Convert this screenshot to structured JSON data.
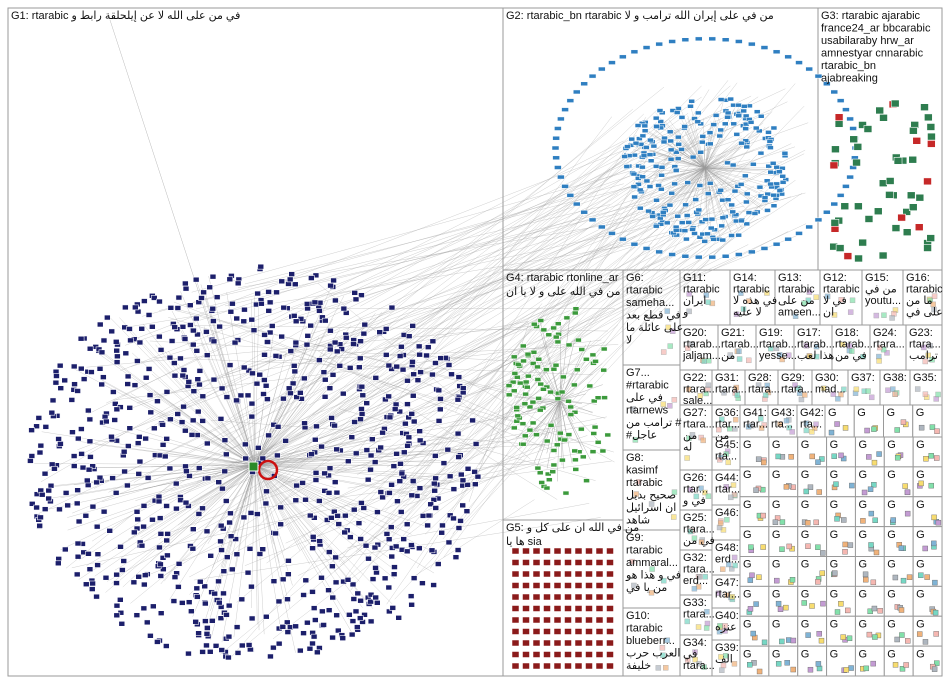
{
  "groups": [
    {
      "lines": [
        "G1: rtarabic في من على الله لا عن إيلحلقة رابط و"
      ]
    },
    {
      "lines": [
        "G2: rtarabic_bn rtarabic من في على إيران الله ترامب و لا"
      ]
    },
    {
      "lines": [
        "G3: rtarabic ajarabic",
        "france24_ar bbcarabic",
        "usabilaraby hrw_ar",
        "amnestyar cnnarabic",
        "rtarabic_bn",
        "ajabreaking"
      ]
    },
    {
      "lines": [
        "G4: rtarabic rtonline_ar",
        "من في الله على و لا يا ان"
      ]
    },
    {
      "lines": [
        "G5: من في الله ان على كل و",
        "ها يا sia"
      ]
    },
    {
      "lines": [
        "G6:",
        "rtarabic",
        "sameha...",
        "في قطع بعد",
        "على عائلة ما",
        "لا"
      ]
    },
    {
      "lines": [
        "G7...",
        "#rtarabic",
        "في على",
        "rtarnews",
        "ترامب من #",
        "#عاجل"
      ]
    },
    {
      "lines": [
        "G8:",
        "kasimf",
        "rtarabic",
        "صحيح بديل",
        "ان اسرائيل",
        "شاهد"
      ]
    },
    {
      "lines": [
        "G9:",
        "rtarabic",
        "ammaral...",
        "في و هذا هو",
        "من يا في"
      ]
    },
    {
      "lines": [
        "G10:",
        "rtarabic",
        "blueberr...",
        "العرب حرب",
        "خليفة"
      ]
    },
    {
      "lines": [
        "G11:",
        "rtarabic",
        "ايران",
        "و"
      ]
    },
    {
      "lines": [
        "G14:",
        "rtarabic",
        "في هذه لا",
        "لا عليه"
      ]
    },
    {
      "lines": [
        "G13:",
        "rtarabic",
        "من على",
        "ameen..."
      ]
    },
    {
      "lines": [
        "G12:",
        "rtarabic",
        "في لا",
        "ان"
      ]
    },
    {
      "lines": [
        "G15:",
        "من في",
        "youtu..."
      ]
    },
    {
      "lines": [
        "G16:",
        "rtarabic",
        "ما من",
        "على في"
      ]
    },
    {
      "lines": [
        "G20:",
        "rtarab...",
        "jaljam..."
      ]
    },
    {
      "lines": [
        "G21:",
        "rtarab...",
        "من"
      ]
    },
    {
      "lines": [
        "G19:",
        "rtarab...",
        "yesse..."
      ]
    },
    {
      "lines": [
        "G17:",
        "rtarab...",
        "هذا لعب"
      ]
    },
    {
      "lines": [
        "G18:",
        "rtarab...",
        "في من"
      ]
    },
    {
      "lines": [
        "G24:",
        "rtara..."
      ]
    },
    {
      "lines": [
        "G23:",
        "rtara...",
        "ترامب"
      ]
    },
    {
      "lines": [
        "G22:",
        "rtara...",
        "sale..."
      ]
    },
    {
      "lines": [
        "G31:",
        "rtara..."
      ]
    },
    {
      "lines": [
        "G28:",
        "rtara..."
      ]
    },
    {
      "lines": [
        "G29:",
        "rtara..."
      ]
    },
    {
      "lines": [
        "G30:",
        "mad..."
      ]
    },
    {
      "lines": [
        "G37:"
      ]
    },
    {
      "lines": [
        "G38:"
      ]
    },
    {
      "lines": [
        "G35:"
      ]
    },
    {
      "lines": [
        "G27:",
        "rtara...",
        "من",
        "له"
      ]
    },
    {
      "lines": [
        "G36:",
        "rtar...",
        "من"
      ]
    },
    {
      "lines": [
        "G41:",
        "rtar..."
      ]
    },
    {
      "lines": [
        "G43:",
        "rta..."
      ]
    },
    {
      "lines": [
        "G42:",
        "rta..."
      ]
    },
    {
      "lines": [
        "G26:",
        "rtar...",
        "في و"
      ]
    },
    {
      "lines": [
        "G45:",
        "rta..."
      ]
    },
    {
      "lines": [
        "G44:",
        "rtar..."
      ]
    },
    {
      "lines": [
        "G46:"
      ]
    },
    {
      "lines": [
        "G25:",
        "rtara...",
        "في من"
      ]
    },
    {
      "lines": [
        "G32:",
        "rtara...",
        "erd..."
      ]
    },
    {
      "lines": [
        "G48:",
        "erd..."
      ]
    },
    {
      "lines": [
        "G47:",
        "rtar..."
      ]
    },
    {
      "lines": [
        "G33:",
        "rtara..."
      ]
    },
    {
      "lines": [
        "G40:",
        "عنزه"
      ]
    },
    {
      "lines": [
        "G34:",
        "في",
        "rtara..."
      ]
    },
    {
      "lines": [
        "G39:",
        "الف"
      ]
    }
  ],
  "small_groups": [
    "G",
    "G",
    "G",
    "G",
    "G",
    "G",
    "G",
    "G",
    "G",
    "G",
    "G",
    "G",
    "G",
    "G",
    "G",
    "G",
    "G",
    "G",
    "G",
    "G",
    "G",
    "G",
    "G",
    "G",
    "G",
    "G",
    "G",
    "G",
    "G",
    "G",
    "G",
    "G",
    "G",
    "G",
    "G",
    "G",
    "G",
    "G",
    "G",
    "G",
    "G",
    "G",
    "G",
    "G",
    "G",
    "G",
    "G",
    "G",
    "G",
    "G",
    "G",
    "G",
    "G",
    "G",
    "G",
    "G",
    "G",
    "G",
    "G",
    "G"
  ]
}
